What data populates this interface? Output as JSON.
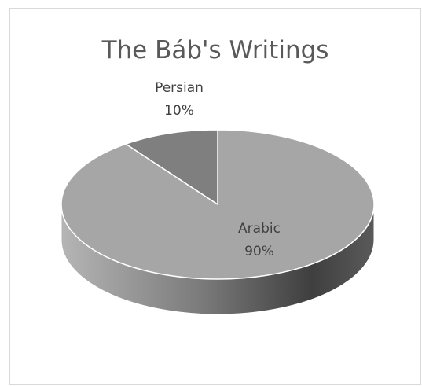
{
  "chart_data": {
    "type": "pie",
    "title": "The Báb's Writings",
    "slices": [
      {
        "label": "Arabic",
        "value": 90,
        "value_label": "90%",
        "color": "#a6a6a6"
      },
      {
        "label": "Persian",
        "value": 10,
        "value_label": "10%",
        "color": "#7f7f7f"
      }
    ],
    "style": "3d",
    "legend": "none"
  }
}
